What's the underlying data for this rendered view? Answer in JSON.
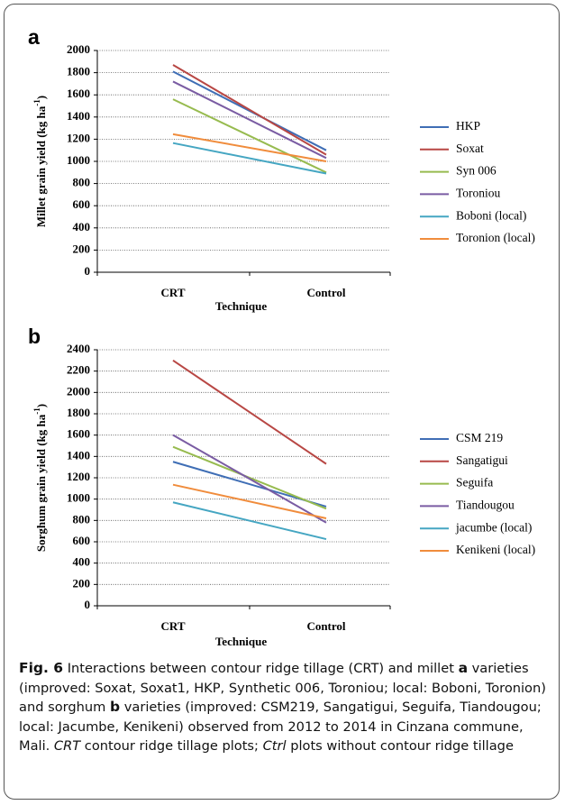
{
  "chart_data": [
    {
      "type": "line",
      "panel_label": "a",
      "ylabel": [
        "Millet grain yield (kg ha",
        "-1",
        ")"
      ],
      "xlabel": "Technique",
      "categories": [
        "CRT",
        "Control"
      ],
      "ylim": [
        0,
        2000
      ],
      "yticks": [
        0,
        200,
        400,
        600,
        800,
        1000,
        1200,
        1400,
        1600,
        1800,
        2000
      ],
      "grid": true,
      "legend": "right",
      "series": [
        {
          "name": "HKP",
          "color": "#3f6eb5",
          "values": [
            1810,
            1100
          ]
        },
        {
          "name": "Soxat",
          "color": "#b84744",
          "values": [
            1870,
            1060
          ]
        },
        {
          "name": "Syn 006",
          "color": "#97bb4f",
          "values": [
            1560,
            900
          ]
        },
        {
          "name": "Toroniou",
          "color": "#7a5ca3",
          "values": [
            1720,
            1030
          ]
        },
        {
          "name": "Boboni (local)",
          "color": "#45a6c2",
          "values": [
            1165,
            890
          ]
        },
        {
          "name": "Toronion (local)",
          "color": "#f08c3c",
          "values": [
            1245,
            1000
          ]
        }
      ]
    },
    {
      "type": "line",
      "panel_label": "b",
      "ylabel": [
        "Sorghum grain yield (kg ha",
        "-1",
        ")"
      ],
      "xlabel": "Technique",
      "categories": [
        "CRT",
        "Control"
      ],
      "ylim": [
        0,
        2400
      ],
      "yticks": [
        0,
        200,
        400,
        600,
        800,
        1000,
        1200,
        1400,
        1600,
        1800,
        2000,
        2200,
        2400
      ],
      "grid": true,
      "legend": "right",
      "series": [
        {
          "name": "CSM 219",
          "color": "#3f6eb5",
          "values": [
            1350,
            930
          ]
        },
        {
          "name": "Sangatigui",
          "color": "#b84744",
          "values": [
            2300,
            1330
          ]
        },
        {
          "name": "Seguifa",
          "color": "#97bb4f",
          "values": [
            1490,
            910
          ]
        },
        {
          "name": "Tiandougou",
          "color": "#7a5ca3",
          "values": [
            1600,
            780
          ]
        },
        {
          "name": "jacumbe (local)",
          "color": "#45a6c2",
          "values": [
            970,
            625
          ]
        },
        {
          "name": "Kenikeni (local)",
          "color": "#f08c3c",
          "values": [
            1135,
            820
          ]
        }
      ]
    }
  ],
  "caption": [
    {
      "text": "Fig. 6",
      "style": "bold"
    },
    {
      "text": "  Interactions between contour ridge tillage (CRT) and millet ",
      "style": "normal"
    },
    {
      "text": "a",
      "style": "bold"
    },
    {
      "text": " varieties (improved: Soxat, Soxat1, HKP, Synthetic 006, Toroniou; local: Boboni, Toronion) and sorghum ",
      "style": "normal"
    },
    {
      "text": "b",
      "style": "bold"
    },
    {
      "text": " varieties (improved: CSM219, Sangatigui, Seguifa, Tiandougou; local: Jacumbe, Kenikeni) observed from 2012 to 2014 in Cinzana commune, Mali. ",
      "style": "normal"
    },
    {
      "text": "CRT",
      "style": "italic"
    },
    {
      "text": " contour ridge tillage plots; ",
      "style": "normal"
    },
    {
      "text": "Ctrl",
      "style": "italic"
    },
    {
      "text": " plots without contour ridge tillage",
      "style": "normal"
    }
  ]
}
